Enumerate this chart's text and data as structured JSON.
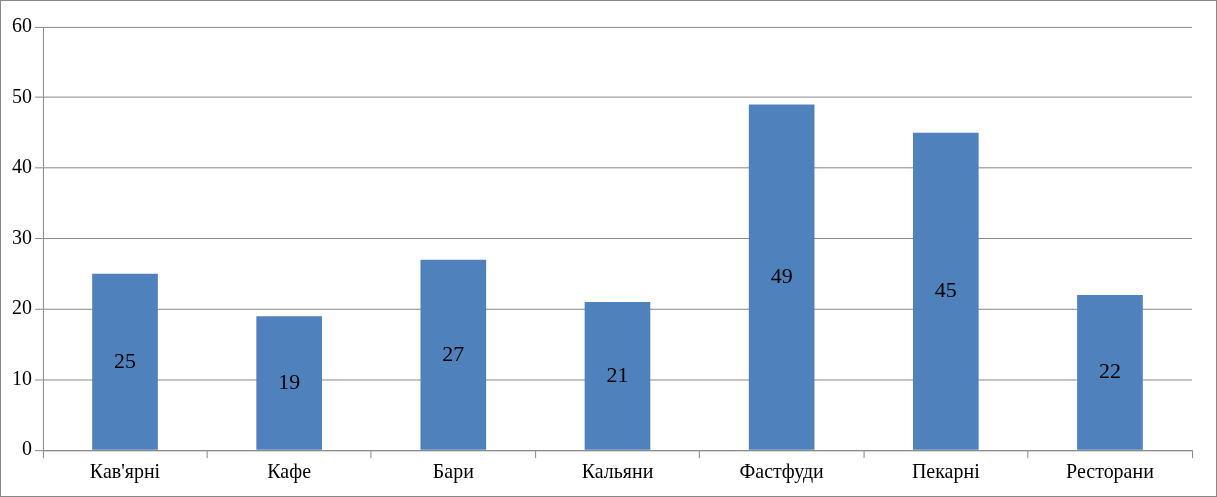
{
  "chart_data": {
    "type": "bar",
    "categories": [
      "Кав'ярні",
      "Кафе",
      "Бари",
      "Кальяни",
      "Фастфуди",
      "Пекарні",
      "Ресторани"
    ],
    "values": [
      25,
      19,
      27,
      21,
      49,
      45,
      22
    ],
    "color": "#4f81bd",
    "ylim": [
      0,
      60
    ],
    "yticks": [
      0,
      10,
      20,
      30,
      40,
      50,
      60
    ],
    "grid": "y",
    "data_labels": true,
    "legend": false
  }
}
